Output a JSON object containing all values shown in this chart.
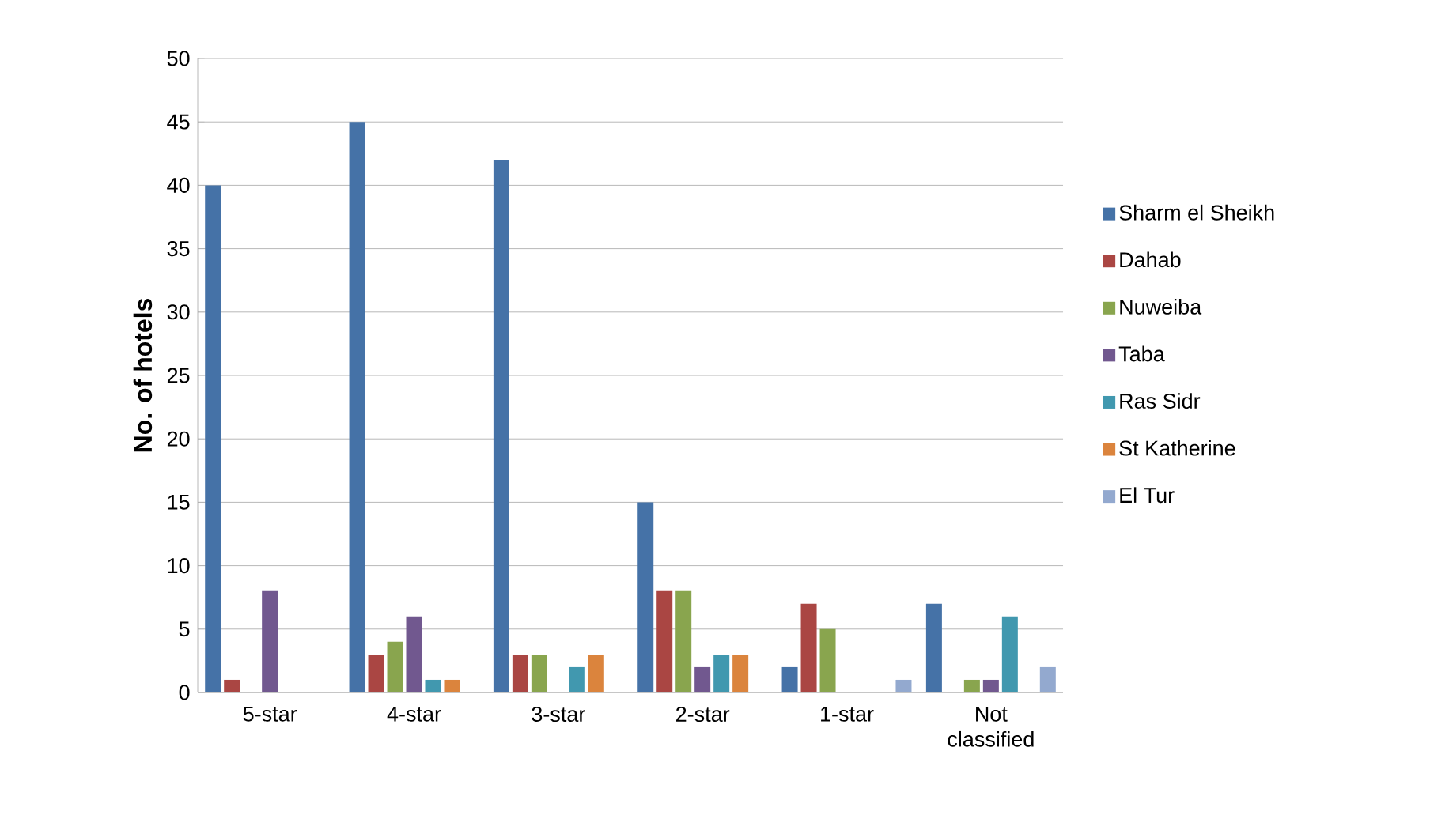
{
  "chart_data": {
    "type": "bar",
    "ylabel": "No. of hotels",
    "categories": [
      "5-star",
      "4-star",
      "3-star",
      "2-star",
      "1-star",
      "Not classified"
    ],
    "series": [
      {
        "name": "Sharm el Sheikh",
        "color": "#4572a7",
        "values": [
          40,
          45,
          42,
          15,
          2,
          7
        ]
      },
      {
        "name": "Dahab",
        "color": "#aa4643",
        "values": [
          1,
          3,
          3,
          8,
          7,
          0
        ]
      },
      {
        "name": "Nuweiba",
        "color": "#89a54e",
        "values": [
          0,
          4,
          3,
          8,
          5,
          1
        ]
      },
      {
        "name": "Taba",
        "color": "#71588f",
        "values": [
          8,
          6,
          0,
          2,
          0,
          1
        ]
      },
      {
        "name": "Ras Sidr",
        "color": "#4198af",
        "values": [
          0,
          1,
          2,
          3,
          0,
          6
        ]
      },
      {
        "name": "St Katherine",
        "color": "#db843d",
        "values": [
          0,
          1,
          3,
          3,
          0,
          0
        ]
      },
      {
        "name": "El Tur",
        "color": "#93a9cf",
        "values": [
          0,
          0,
          0,
          0,
          1,
          2
        ]
      }
    ],
    "ylim": [
      0,
      50
    ],
    "yticks": [
      0,
      5,
      10,
      15,
      20,
      25,
      30,
      35,
      40,
      45,
      50
    ],
    "grid": "y",
    "legend": "right"
  }
}
